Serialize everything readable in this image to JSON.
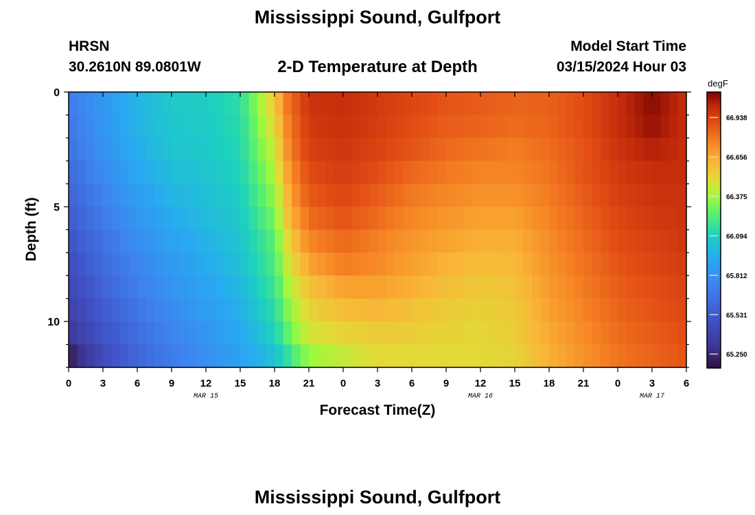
{
  "header": {
    "title": "Mississippi Sound, Gulfport",
    "station_id": "HRSN",
    "station_coords": "30.2610N  89.0801W",
    "plot_title": "2-D Temperature at Depth",
    "model_label": "Model Start Time",
    "model_time": "03/15/2024 Hour 03"
  },
  "footer": {
    "title": "Mississippi Sound, Gulfport"
  },
  "chart_data": {
    "type": "heatmap",
    "title": "2-D Temperature at Depth",
    "xlabel": "Forecast Time(Z)",
    "ylabel": "Depth (ft)",
    "colorbar_unit": "degF",
    "x_range_hours": [
      0,
      54
    ],
    "y_range_ft": [
      0,
      12
    ],
    "y_inverted": true,
    "x_ticks": [
      "0",
      "3",
      "6",
      "9",
      "12",
      "15",
      "18",
      "21",
      "0",
      "3",
      "6",
      "9",
      "12",
      "15",
      "18",
      "21",
      "0",
      "3",
      "6"
    ],
    "y_ticks": [
      0,
      5,
      10
    ],
    "y_tick_labels": [
      "0",
      "5",
      "10"
    ],
    "date_labels": [
      {
        "label": "MAR 15",
        "hour": 12
      },
      {
        "label": "MAR 16",
        "hour": 36
      },
      {
        "label": "MAR 17",
        "hour": 51
      }
    ],
    "colorbar_ticks": [
      "66.938",
      "66.656",
      "66.375",
      "66.094",
      "65.812",
      "65.531",
      "65.250"
    ],
    "colorbar_values": [
      66.938,
      66.656,
      66.375,
      66.094,
      65.812,
      65.531,
      65.25
    ],
    "value_range": [
      65.15,
      67.12
    ],
    "depth_levels_ft": [
      0.5,
      1.5,
      2.5,
      3.5,
      4.5,
      5.5,
      6.5,
      7.5,
      8.5,
      9.5,
      10.5,
      11.5
    ],
    "time_hours": [
      0,
      3,
      6,
      9,
      12,
      15,
      18,
      19,
      20,
      21,
      24,
      27,
      30,
      33,
      36,
      39,
      42,
      45,
      48,
      51,
      54
    ],
    "temperature_degF": [
      [
        65.7,
        65.85,
        65.98,
        66.06,
        66.08,
        66.14,
        66.55,
        66.78,
        66.88,
        66.98,
        67.0,
        66.96,
        66.92,
        66.88,
        66.86,
        66.84,
        66.85,
        66.9,
        67.0,
        67.1,
        67.0
      ],
      [
        65.68,
        65.84,
        65.97,
        66.05,
        66.07,
        66.13,
        66.5,
        66.74,
        66.86,
        66.96,
        66.99,
        66.95,
        66.9,
        66.86,
        66.84,
        66.82,
        66.84,
        66.9,
        67.0,
        67.08,
        67.0
      ],
      [
        65.66,
        65.82,
        65.95,
        66.04,
        66.06,
        66.12,
        66.45,
        66.7,
        66.84,
        66.94,
        66.97,
        66.93,
        66.88,
        66.83,
        66.8,
        66.78,
        66.82,
        66.88,
        66.98,
        67.04,
        67.0
      ],
      [
        65.62,
        65.78,
        65.92,
        66.01,
        66.04,
        66.1,
        66.4,
        66.65,
        66.8,
        66.91,
        66.95,
        66.9,
        66.83,
        66.79,
        66.76,
        66.76,
        66.8,
        66.88,
        66.96,
        67.0,
        67.0
      ],
      [
        65.58,
        65.74,
        65.88,
        65.98,
        66.02,
        66.08,
        66.35,
        66.6,
        66.76,
        66.87,
        66.92,
        66.86,
        66.79,
        66.75,
        66.72,
        66.72,
        66.78,
        66.86,
        66.94,
        66.98,
        66.99
      ],
      [
        65.54,
        65.7,
        65.84,
        65.94,
        66.0,
        66.06,
        66.3,
        66.55,
        66.7,
        66.82,
        66.88,
        66.82,
        66.75,
        66.71,
        66.68,
        66.68,
        66.76,
        66.84,
        66.92,
        66.96,
        66.98
      ],
      [
        65.5,
        65.66,
        65.8,
        65.9,
        65.97,
        66.04,
        66.25,
        66.48,
        66.63,
        66.75,
        66.83,
        66.77,
        66.71,
        66.67,
        66.64,
        66.64,
        66.74,
        66.82,
        66.9,
        66.94,
        66.97
      ],
      [
        65.46,
        65.62,
        65.76,
        65.86,
        65.94,
        66.02,
        66.22,
        66.42,
        66.56,
        66.67,
        66.78,
        66.74,
        66.68,
        66.63,
        66.6,
        66.61,
        66.72,
        66.8,
        66.88,
        66.92,
        66.95
      ],
      [
        65.42,
        65.58,
        65.72,
        65.83,
        65.91,
        65.99,
        66.18,
        66.36,
        66.48,
        66.58,
        66.68,
        66.68,
        66.64,
        66.59,
        66.56,
        66.58,
        66.7,
        66.78,
        66.86,
        66.9,
        66.93
      ],
      [
        65.38,
        65.54,
        65.68,
        65.79,
        65.88,
        65.96,
        66.14,
        66.3,
        66.42,
        66.52,
        66.6,
        66.62,
        66.58,
        66.55,
        66.53,
        66.56,
        66.68,
        66.76,
        66.84,
        66.88,
        66.92
      ],
      [
        65.32,
        65.5,
        65.64,
        65.75,
        65.84,
        65.93,
        66.1,
        66.24,
        66.36,
        66.46,
        66.52,
        66.55,
        66.54,
        66.52,
        66.51,
        66.54,
        66.66,
        66.74,
        66.82,
        66.86,
        66.9
      ],
      [
        65.2,
        65.45,
        65.6,
        65.71,
        65.8,
        65.9,
        66.03,
        66.14,
        66.26,
        66.36,
        66.44,
        66.5,
        66.5,
        66.5,
        66.5,
        66.52,
        66.64,
        66.72,
        66.8,
        66.84,
        66.88
      ]
    ]
  }
}
